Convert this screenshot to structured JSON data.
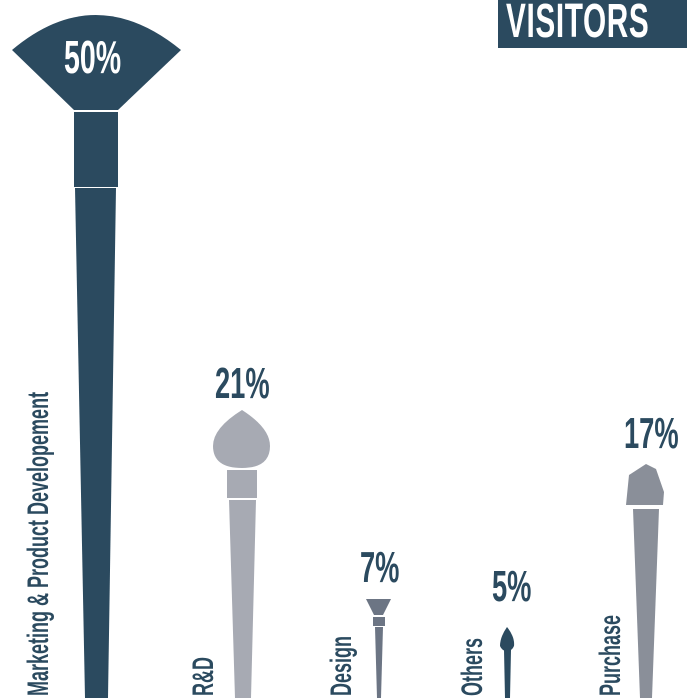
{
  "title": "VISITORS",
  "colors": {
    "dark": "#2b4a5f",
    "silver": "#a7aab3",
    "slate": "#6c7584",
    "gray": "#8a8f99"
  },
  "chart_data": {
    "type": "bar",
    "title": "VISITORS",
    "categories": [
      "Marketing & Product Developement",
      "R&D",
      "Design",
      "Others",
      "Purchase"
    ],
    "values": [
      50,
      21,
      7,
      5,
      17
    ],
    "value_labels": [
      "50%",
      "21%",
      "7%",
      "5%",
      "17%"
    ],
    "unit": "%",
    "bar_style": "makeup brushes",
    "legend": "none"
  }
}
